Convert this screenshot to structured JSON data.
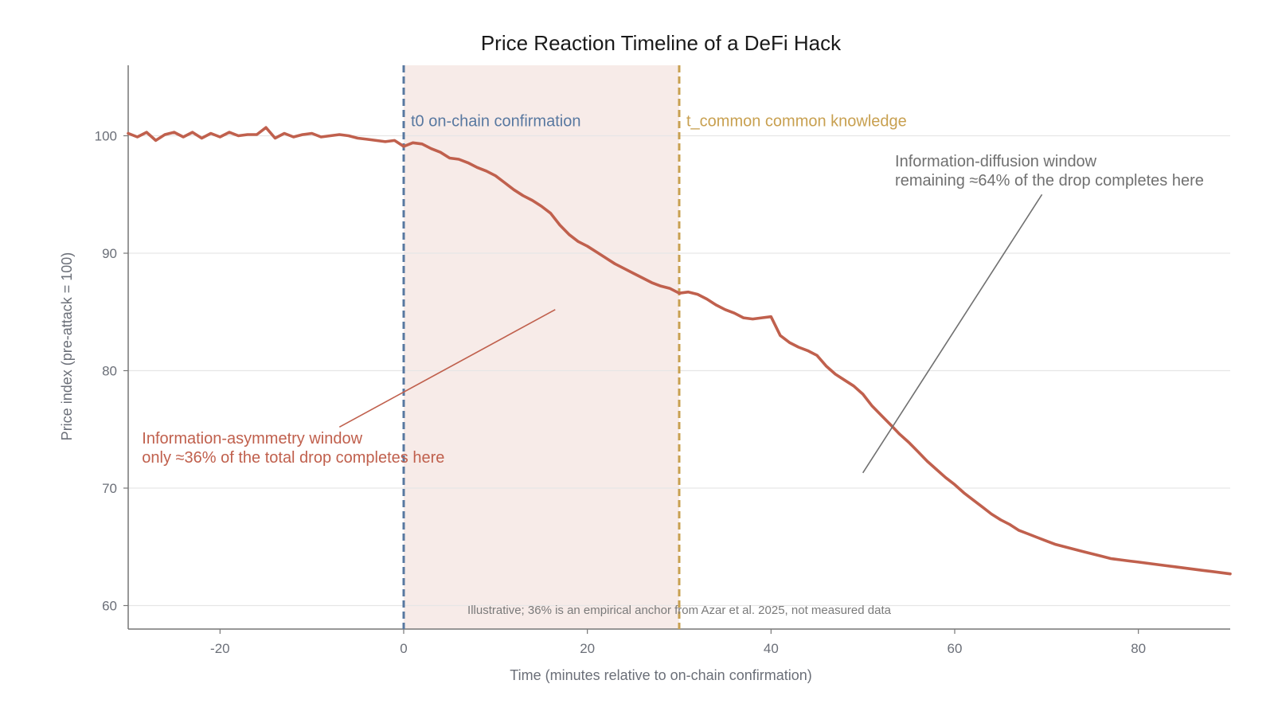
{
  "chart_data": {
    "type": "line",
    "title": "Price Reaction Timeline of a DeFi Hack",
    "xlabel": "Time (minutes relative to on-chain confirmation)",
    "ylabel": "Price index (pre-attack = 100)",
    "xlim": [
      -30,
      90
    ],
    "ylim": [
      58,
      106
    ],
    "xticks": [
      -20,
      0,
      20,
      40,
      60,
      80
    ],
    "yticks": [
      60,
      70,
      80,
      90,
      100
    ],
    "grid": "horizontal",
    "series": [
      {
        "color": "#c0604d",
        "x": [
          -30,
          -29,
          -28,
          -27,
          -26,
          -25,
          -24,
          -23,
          -22,
          -21,
          -20,
          -19,
          -18,
          -17,
          -16,
          -15,
          -14,
          -13,
          -12,
          -11,
          -10,
          -9,
          -8,
          -7,
          -6,
          -5,
          -4,
          -3,
          -2,
          -1,
          0,
          1,
          2,
          3,
          4,
          5,
          6,
          7,
          8,
          9,
          10,
          11,
          12,
          13,
          14,
          15,
          16,
          17,
          18,
          19,
          20,
          21,
          22,
          23,
          24,
          25,
          26,
          27,
          28,
          29,
          30,
          31,
          32,
          33,
          34,
          35,
          36,
          37,
          38,
          39,
          40,
          41,
          42,
          43,
          44,
          45,
          46,
          47,
          48,
          49,
          50,
          51,
          52,
          53,
          54,
          55,
          56,
          57,
          58,
          59,
          60,
          61,
          62,
          63,
          64,
          65,
          66,
          67,
          68,
          69,
          70,
          71,
          72,
          73,
          74,
          75,
          76,
          77,
          78,
          79,
          80,
          81,
          82,
          83,
          84,
          85,
          86,
          87,
          88,
          89,
          90
        ],
        "y": [
          100.2,
          99.9,
          100.3,
          99.6,
          100.1,
          100.3,
          99.9,
          100.3,
          99.8,
          100.2,
          99.9,
          100.3,
          100.0,
          100.1,
          100.1,
          100.7,
          99.8,
          100.2,
          99.9,
          100.1,
          100.2,
          99.9,
          100.0,
          100.1,
          100.0,
          99.8,
          99.7,
          99.6,
          99.5,
          99.6,
          99.1,
          99.4,
          99.3,
          98.9,
          98.6,
          98.1,
          98.0,
          97.7,
          97.3,
          97.0,
          96.6,
          96.0,
          95.4,
          94.9,
          94.5,
          94.0,
          93.4,
          92.4,
          91.6,
          91.0,
          90.6,
          90.1,
          89.6,
          89.1,
          88.7,
          88.3,
          87.9,
          87.5,
          87.2,
          87.0,
          86.6,
          86.7,
          86.5,
          86.1,
          85.6,
          85.2,
          84.9,
          84.5,
          84.4,
          84.5,
          84.6,
          83.0,
          82.4,
          82.0,
          81.7,
          81.3,
          80.4,
          79.7,
          79.2,
          78.7,
          78.0,
          77.0,
          76.2,
          75.4,
          74.6,
          73.9,
          73.1,
          72.3,
          71.6,
          70.9,
          70.3,
          69.6,
          69.0,
          68.4,
          67.8,
          67.3,
          66.9,
          66.4,
          66.1,
          65.8,
          65.5,
          65.2,
          65.0,
          64.8,
          64.6,
          64.4,
          64.2,
          64.0,
          63.9,
          63.8,
          63.7,
          63.6,
          63.5,
          63.4,
          63.3,
          63.2,
          63.1,
          63.0,
          62.9,
          62.8,
          62.7
        ]
      }
    ],
    "shaded_region": {
      "x_start": 0,
      "x_end": 30,
      "color": "#f7ebe8"
    },
    "vlines": [
      {
        "x": 0,
        "color": "#5878a0",
        "label": "t0 on-chain confirmation"
      },
      {
        "x": 30,
        "color": "#c8a050",
        "label": "t_common common knowledge"
      }
    ],
    "annotations": [
      {
        "lines": [
          "Information-asymmetry window",
          "only ≈36% of the total drop completes here"
        ],
        "color": "#c0604d",
        "text_x": -28.5,
        "text_y": 73.8,
        "arrow_from": [
          -7,
          75.2
        ],
        "arrow_to": [
          16.5,
          85.2
        ]
      },
      {
        "lines": [
          "Information-diffusion window",
          "remaining ≈64% of the drop completes here"
        ],
        "color": "#707070",
        "text_x": 53.5,
        "text_y": 97.4,
        "arrow_from": [
          69.5,
          95.0
        ],
        "arrow_to": [
          50,
          71.3
        ]
      }
    ],
    "footnote": "Illustrative; 36% is an empirical anchor from Azar et al. 2025, not measured data"
  }
}
